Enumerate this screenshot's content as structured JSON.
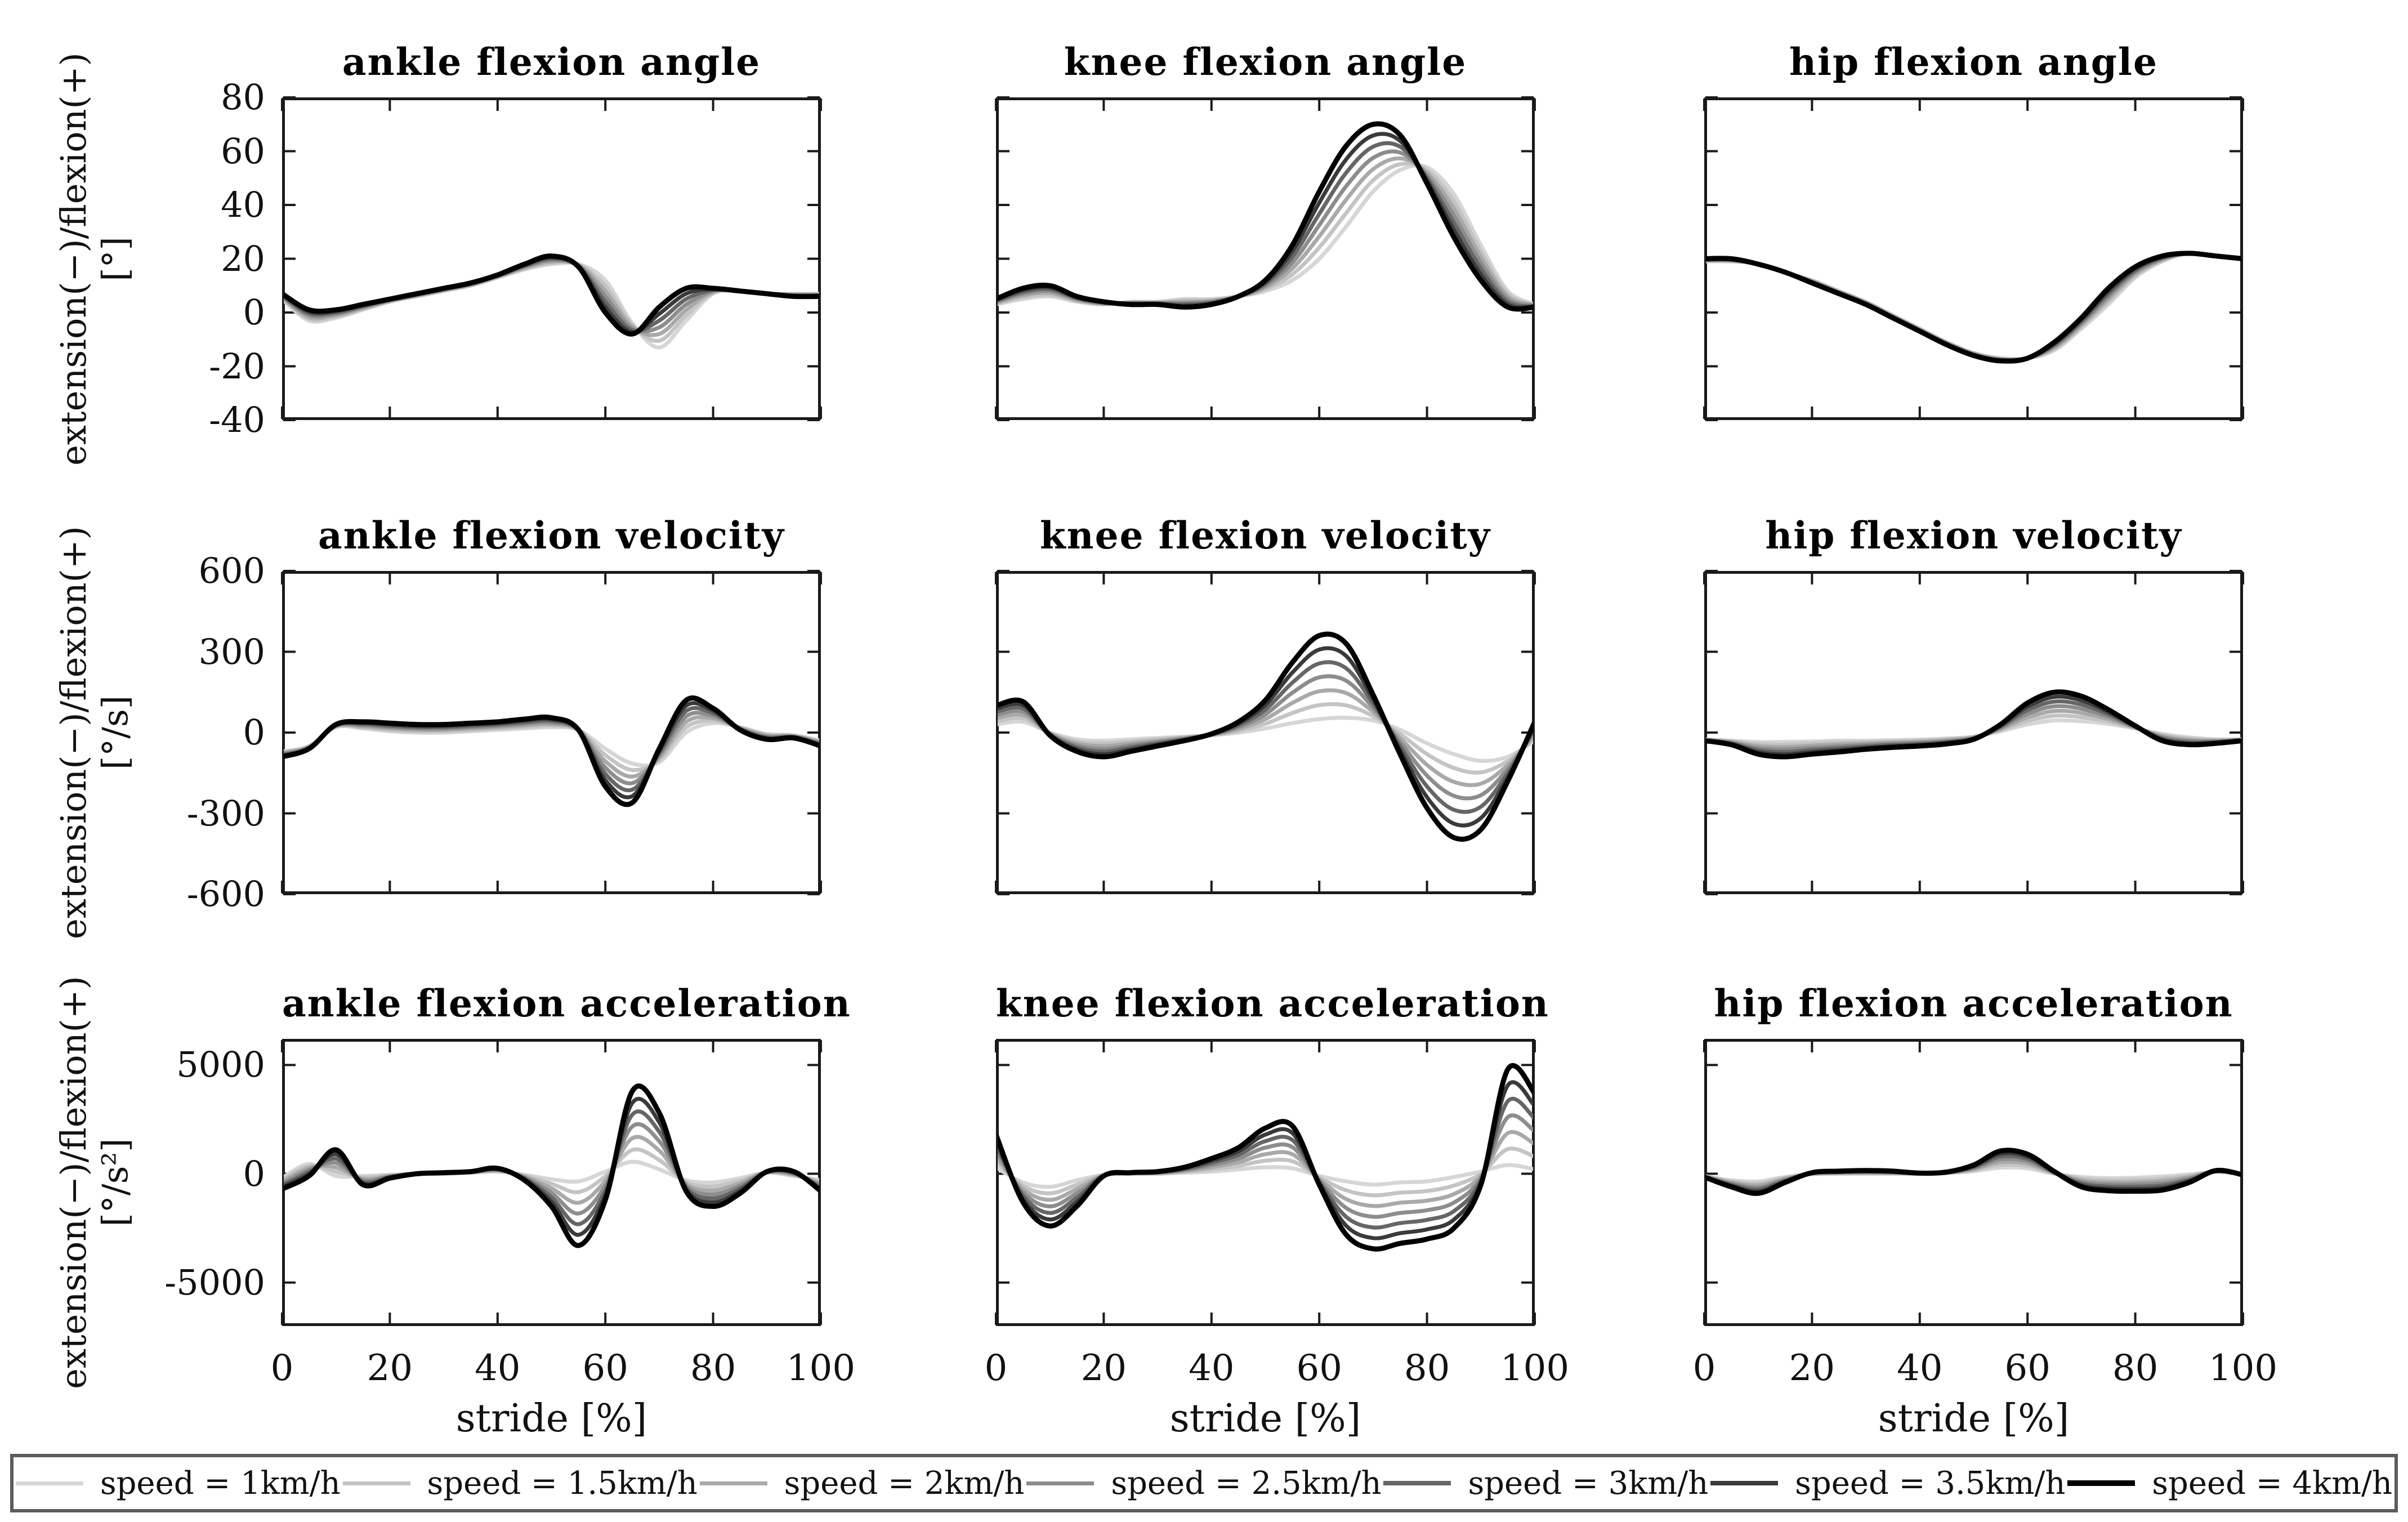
{
  "figure": {
    "background": "#ffffff",
    "axis_color": "#1a1a1a",
    "xlabel": "stride [%]",
    "ylabel": "extension(−)/flexion(+)",
    "xticks": [
      {
        "v": 0,
        "label": "0"
      },
      {
        "v": 20,
        "label": "20"
      },
      {
        "v": 40,
        "label": "40"
      },
      {
        "v": 60,
        "label": "60"
      },
      {
        "v": 80,
        "label": "80"
      },
      {
        "v": 100,
        "label": "100"
      }
    ],
    "rows": [
      {
        "unit": "[°]",
        "ylim": [
          -40,
          80
        ],
        "yticks": [
          {
            "v": 80,
            "label": "80"
          },
          {
            "v": 60,
            "label": "60"
          },
          {
            "v": 40,
            "label": "40"
          },
          {
            "v": 20,
            "label": "20"
          },
          {
            "v": 0,
            "label": "0"
          },
          {
            "v": -20,
            "label": "-20"
          },
          {
            "v": -40,
            "label": "-40"
          }
        ]
      },
      {
        "unit": "[°/s]",
        "ylim": [
          -600,
          600
        ],
        "yticks": [
          {
            "v": 600,
            "label": "600"
          },
          {
            "v": 300,
            "label": "300"
          },
          {
            "v": 0,
            "label": "0"
          },
          {
            "v": -300,
            "label": "-300"
          },
          {
            "v": -600,
            "label": "-600"
          }
        ]
      },
      {
        "unit": "[°/s²]",
        "ylim": [
          -7000,
          6200
        ],
        "yticks": [
          {
            "v": 5000,
            "label": "5000"
          },
          {
            "v": 0,
            "label": "0"
          },
          {
            "v": -5000,
            "label": "-5000"
          }
        ]
      }
    ]
  },
  "legend": {
    "entries": [
      {
        "label": "speed = 1km/h",
        "color": "#d6d6d6",
        "t": 0,
        "thickness": 7
      },
      {
        "label": "speed = 1.5km/h",
        "color": "#c4c4c4",
        "t": 0.167,
        "thickness": 7
      },
      {
        "label": "speed = 2km/h",
        "color": "#a9a9a9",
        "t": 0.333,
        "thickness": 7
      },
      {
        "label": "speed = 2.5km/h",
        "color": "#8d8d8d",
        "t": 0.5,
        "thickness": 7
      },
      {
        "label": "speed = 3km/h",
        "color": "#666666",
        "t": 0.667,
        "thickness": 8
      },
      {
        "label": "speed = 3.5km/h",
        "color": "#3a3a3a",
        "t": 0.833,
        "thickness": 8
      },
      {
        "label": "speed = 4km/h",
        "color": "#000000",
        "t": 1,
        "thickness": 10
      }
    ],
    "series_rule": "values for each speed = slowest + t × (fastest − slowest)"
  },
  "chart_data": [
    {
      "id": "ankle-flexion-angle",
      "title": "ankle flexion angle",
      "type": "line",
      "row": 0,
      "col": 0,
      "x": [
        0,
        5,
        10,
        15,
        20,
        25,
        30,
        35,
        40,
        45,
        50,
        55,
        60,
        65,
        70,
        75,
        80,
        85,
        90,
        95,
        100
      ],
      "series_slowest_1kmh": [
        5,
        -3,
        -2,
        1,
        4,
        6,
        8,
        10,
        13,
        16,
        18,
        18,
        12,
        -4,
        -13,
        -3,
        7,
        8,
        7,
        7,
        7
      ],
      "series_fastest_4kmh": [
        7,
        1,
        1,
        3,
        5,
        7,
        9,
        11,
        14,
        18,
        21,
        17,
        0,
        -8,
        2,
        9,
        9,
        8,
        7,
        6,
        6
      ]
    },
    {
      "id": "knee-flexion-angle",
      "title": "knee flexion angle",
      "type": "line",
      "row": 0,
      "col": 1,
      "x": [
        0,
        5,
        10,
        15,
        20,
        25,
        30,
        35,
        40,
        45,
        50,
        55,
        60,
        65,
        70,
        75,
        80,
        85,
        90,
        95,
        100
      ],
      "series_slowest_1kmh": [
        3,
        5,
        6,
        4,
        3,
        4,
        4,
        5,
        5,
        6,
        8,
        12,
        20,
        32,
        45,
        53,
        54,
        44,
        25,
        8,
        3
      ],
      "series_fastest_4kmh": [
        5,
        9,
        10,
        6,
        4,
        3,
        3,
        2,
        3,
        6,
        12,
        25,
        45,
        62,
        70,
        66,
        48,
        28,
        12,
        2,
        2
      ]
    },
    {
      "id": "hip-flexion-angle",
      "title": "hip flexion angle",
      "type": "line",
      "row": 0,
      "col": 2,
      "x": [
        0,
        5,
        10,
        15,
        20,
        25,
        30,
        35,
        40,
        45,
        50,
        55,
        60,
        65,
        70,
        75,
        80,
        85,
        90,
        95,
        100
      ],
      "series_slowest_1kmh": [
        19,
        19,
        18,
        15,
        12,
        8,
        4,
        -1,
        -6,
        -11,
        -15,
        -17,
        -17,
        -14,
        -6,
        3,
        13,
        19,
        22,
        21,
        20
      ],
      "series_fastest_4kmh": [
        20,
        20,
        18,
        15,
        11,
        7,
        3,
        -2,
        -7,
        -12,
        -16,
        -18,
        -17,
        -11,
        -2,
        9,
        17,
        21,
        22,
        21,
        20
      ]
    },
    {
      "id": "ankle-flexion-velocity",
      "title": "ankle flexion velocity",
      "type": "line",
      "row": 1,
      "col": 0,
      "x": [
        0,
        5,
        10,
        15,
        20,
        25,
        30,
        35,
        40,
        45,
        50,
        55,
        60,
        65,
        70,
        75,
        80,
        85,
        90,
        95,
        100
      ],
      "series_slowest_1kmh": [
        -70,
        -50,
        20,
        15,
        5,
        0,
        0,
        5,
        10,
        15,
        20,
        10,
        -60,
        -115,
        -110,
        0,
        35,
        20,
        -5,
        -10,
        -30
      ],
      "series_fastest_4kmh": [
        -90,
        -60,
        30,
        40,
        35,
        30,
        30,
        35,
        40,
        50,
        55,
        10,
        -200,
        -260,
        -60,
        120,
        90,
        10,
        -25,
        -20,
        -50
      ]
    },
    {
      "id": "knee-flexion-velocity",
      "title": "knee flexion velocity",
      "type": "line",
      "row": 1,
      "col": 1,
      "x": [
        0,
        5,
        10,
        15,
        20,
        25,
        30,
        35,
        40,
        45,
        50,
        55,
        60,
        65,
        70,
        75,
        80,
        85,
        90,
        95,
        100
      ],
      "series_slowest_1kmh": [
        30,
        40,
        0,
        -25,
        -30,
        -25,
        -20,
        -15,
        -10,
        0,
        15,
        35,
        50,
        55,
        45,
        10,
        -40,
        -80,
        -105,
        -90,
        -30
      ],
      "series_fastest_4kmh": [
        100,
        115,
        -10,
        -70,
        -90,
        -70,
        -50,
        -30,
        -5,
        40,
        120,
        260,
        360,
        330,
        140,
        -80,
        -280,
        -390,
        -360,
        -180,
        40
      ]
    },
    {
      "id": "hip-flexion-velocity",
      "title": "hip flexion velocity",
      "type": "line",
      "row": 1,
      "col": 2,
      "x": [
        0,
        5,
        10,
        15,
        20,
        25,
        30,
        35,
        40,
        45,
        50,
        55,
        60,
        65,
        70,
        75,
        80,
        85,
        90,
        95,
        100
      ],
      "series_slowest_1kmh": [
        -25,
        -30,
        -35,
        -35,
        -33,
        -30,
        -30,
        -28,
        -26,
        -22,
        -15,
        5,
        30,
        45,
        42,
        32,
        15,
        -5,
        -18,
        -25,
        -25
      ],
      "series_fastest_4kmh": [
        -30,
        -45,
        -80,
        -90,
        -80,
        -72,
        -62,
        -55,
        -50,
        -42,
        -25,
        30,
        110,
        150,
        135,
        85,
        25,
        -30,
        -45,
        -40,
        -30
      ]
    },
    {
      "id": "ankle-flexion-acceleration",
      "title": "ankle flexion acceleration",
      "type": "line",
      "row": 2,
      "col": 0,
      "x": [
        0,
        5,
        10,
        15,
        20,
        25,
        30,
        35,
        40,
        45,
        50,
        55,
        60,
        65,
        70,
        75,
        80,
        85,
        90,
        95,
        100
      ],
      "series_slowest_1kmh": [
        -200,
        450,
        -100,
        -100,
        -50,
        0,
        0,
        50,
        100,
        -50,
        -250,
        -350,
        100,
        550,
        200,
        -300,
        -400,
        -200,
        50,
        -100,
        -300
      ],
      "series_fastest_4kmh": [
        -700,
        -100,
        1100,
        -500,
        -200,
        0,
        50,
        100,
        250,
        -300,
        -1500,
        -3300,
        -1200,
        3800,
        2800,
        -800,
        -1500,
        -900,
        100,
        100,
        -800
      ]
    },
    {
      "id": "knee-flexion-acceleration",
      "title": "knee flexion acceleration",
      "type": "line",
      "row": 2,
      "col": 1,
      "x": [
        0,
        5,
        10,
        15,
        20,
        25,
        30,
        35,
        40,
        45,
        50,
        55,
        60,
        65,
        70,
        75,
        80,
        85,
        90,
        95,
        100
      ],
      "series_slowest_1kmh": [
        300,
        -400,
        -600,
        -300,
        -50,
        0,
        0,
        50,
        100,
        200,
        300,
        250,
        -100,
        -350,
        -500,
        -400,
        -350,
        -150,
        100,
        400,
        200
      ],
      "series_fastest_4kmh": [
        1800,
        -1300,
        -2400,
        -1500,
        -100,
        50,
        100,
        300,
        700,
        1200,
        2100,
        2200,
        -500,
        -2800,
        -3450,
        -3200,
        -3000,
        -2500,
        -500,
        4800,
        3700
      ]
    },
    {
      "id": "hip-flexion-acceleration",
      "title": "hip flexion acceleration",
      "type": "line",
      "row": 2,
      "col": 2,
      "x": [
        0,
        5,
        10,
        15,
        20,
        25,
        30,
        35,
        40,
        45,
        50,
        55,
        60,
        65,
        70,
        75,
        80,
        85,
        90,
        95,
        100
      ],
      "series_slowest_1kmh": [
        -100,
        -300,
        -350,
        -150,
        -20,
        0,
        0,
        0,
        0,
        30,
        120,
        280,
        250,
        0,
        -150,
        -200,
        -180,
        -120,
        -30,
        80,
        0
      ],
      "series_fastest_4kmh": [
        -150,
        -600,
        -900,
        -400,
        50,
        120,
        150,
        120,
        30,
        80,
        400,
        1050,
        900,
        100,
        -600,
        -780,
        -800,
        -750,
        -400,
        150,
        -50
      ]
    }
  ]
}
